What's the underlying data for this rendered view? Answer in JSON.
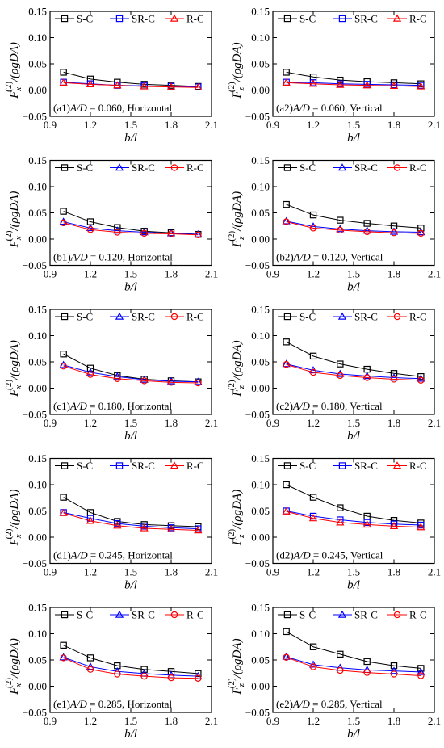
{
  "figure": {
    "legend_entries": [
      "S-C",
      "SR-C",
      "R-C"
    ],
    "colors": {
      "S-C": "#000000",
      "SR-C": "#0000ff",
      "R-C": "#ff0000"
    }
  },
  "chart_data": [
    {
      "type": "line",
      "row": 0,
      "col": 0,
      "panel_label": "(a1)A/D = 0.060, Horizontal",
      "xlabel": "b/l",
      "ylabel": "F_x^(2)/(ρgDA)",
      "xlim": [
        0.9,
        2.1
      ],
      "ylim": [
        -0.05,
        0.15
      ],
      "xticks": [
        "0.9",
        "1.2",
        "1.5",
        "1.8",
        "2.1"
      ],
      "yticks": [
        "−0.05",
        "0.00",
        "0.05",
        "0.10",
        "0.15"
      ],
      "x": [
        1.0,
        1.2,
        1.4,
        1.6,
        1.8,
        2.0
      ],
      "legend": "top",
      "series": [
        {
          "name": "S-C",
          "marker": "square",
          "values": [
            0.034,
            0.021,
            0.015,
            0.011,
            0.009,
            0.007
          ]
        },
        {
          "name": "SR-C",
          "marker": "square",
          "values": [
            0.015,
            0.012,
            0.009,
            0.008,
            0.007,
            0.006
          ]
        },
        {
          "name": "R-C",
          "marker": "triangle",
          "values": [
            0.014,
            0.011,
            0.009,
            0.007,
            0.006,
            0.005
          ]
        }
      ]
    },
    {
      "type": "line",
      "row": 0,
      "col": 1,
      "panel_label": "(a2)A/D = 0.060, Vertical",
      "xlabel": "b/l",
      "ylabel": "F_z^(2)/(ρgDA)",
      "xlim": [
        0.9,
        2.1
      ],
      "ylim": [
        -0.05,
        0.15
      ],
      "xticks": [
        "0.9",
        "1.2",
        "1.5",
        "1.8",
        "2.1"
      ],
      "yticks": [
        "−0.05",
        "0.00",
        "0.05",
        "0.10",
        "0.15"
      ],
      "x": [
        1.0,
        1.2,
        1.4,
        1.6,
        1.8,
        2.0
      ],
      "legend": "top",
      "series": [
        {
          "name": "S-C",
          "marker": "square",
          "values": [
            0.034,
            0.025,
            0.019,
            0.016,
            0.014,
            0.012
          ]
        },
        {
          "name": "SR-C",
          "marker": "square",
          "values": [
            0.015,
            0.014,
            0.012,
            0.011,
            0.01,
            0.009
          ]
        },
        {
          "name": "R-C",
          "marker": "triangle",
          "values": [
            0.014,
            0.012,
            0.01,
            0.009,
            0.008,
            0.007
          ]
        }
      ]
    },
    {
      "type": "line",
      "row": 1,
      "col": 0,
      "panel_label": "(b1)A/D = 0.120, Horizontal",
      "xlabel": "b/l",
      "ylabel": "F_x^(2)/(ρgDA)",
      "xlim": [
        0.9,
        2.1
      ],
      "ylim": [
        -0.05,
        0.15
      ],
      "xticks": [
        "0.9",
        "1.2",
        "1.5",
        "1.8",
        "2.1"
      ],
      "yticks": [
        "−0.05",
        "0.00",
        "0.05",
        "0.10",
        "0.15"
      ],
      "x": [
        1.0,
        1.2,
        1.4,
        1.6,
        1.8,
        2.0
      ],
      "legend": "top",
      "series": [
        {
          "name": "S-C",
          "marker": "square",
          "values": [
            0.053,
            0.033,
            0.022,
            0.015,
            0.012,
            0.009
          ]
        },
        {
          "name": "SR-C",
          "marker": "triangle",
          "values": [
            0.033,
            0.021,
            0.016,
            0.013,
            0.011,
            0.009
          ]
        },
        {
          "name": "R-C",
          "marker": "circle",
          "values": [
            0.031,
            0.018,
            0.013,
            0.011,
            0.01,
            0.008
          ]
        }
      ]
    },
    {
      "type": "line",
      "row": 1,
      "col": 1,
      "panel_label": "(b2)A/D = 0.120, Vertical",
      "xlabel": "b/l",
      "ylabel": "F_z^(2)/(ρgDA)",
      "xlim": [
        0.9,
        2.1
      ],
      "ylim": [
        -0.05,
        0.15
      ],
      "xticks": [
        "0.9",
        "1.2",
        "1.5",
        "1.8",
        "2.1"
      ],
      "yticks": [
        "−0.05",
        "0.00",
        "0.05",
        "0.10",
        "0.15"
      ],
      "x": [
        1.0,
        1.2,
        1.4,
        1.6,
        1.8,
        2.0
      ],
      "legend": "top",
      "series": [
        {
          "name": "S-C",
          "marker": "square",
          "values": [
            0.066,
            0.046,
            0.036,
            0.03,
            0.025,
            0.021
          ]
        },
        {
          "name": "SR-C",
          "marker": "triangle",
          "values": [
            0.034,
            0.024,
            0.019,
            0.016,
            0.014,
            0.013
          ]
        },
        {
          "name": "R-C",
          "marker": "circle",
          "values": [
            0.033,
            0.021,
            0.017,
            0.014,
            0.012,
            0.011
          ]
        }
      ]
    },
    {
      "type": "line",
      "row": 2,
      "col": 0,
      "panel_label": "(c1)A/D = 0.180, Horizontal",
      "xlabel": "b/l",
      "ylabel": "F_x^(2)/(ρgDA)",
      "xlim": [
        0.9,
        2.1
      ],
      "ylim": [
        -0.05,
        0.15
      ],
      "xticks": [
        "0.9",
        "1.2",
        "1.5",
        "1.8",
        "2.1"
      ],
      "yticks": [
        "−0.05",
        "0.00",
        "0.05",
        "0.10",
        "0.15"
      ],
      "x": [
        1.0,
        1.2,
        1.4,
        1.6,
        1.8,
        2.0
      ],
      "legend": "top",
      "series": [
        {
          "name": "S-C",
          "marker": "square",
          "values": [
            0.065,
            0.038,
            0.024,
            0.017,
            0.014,
            0.012
          ]
        },
        {
          "name": "SR-C",
          "marker": "triangle",
          "values": [
            0.044,
            0.03,
            0.022,
            0.016,
            0.013,
            0.012
          ]
        },
        {
          "name": "R-C",
          "marker": "circle",
          "values": [
            0.042,
            0.026,
            0.018,
            0.014,
            0.011,
            0.01
          ]
        }
      ]
    },
    {
      "type": "line",
      "row": 2,
      "col": 1,
      "panel_label": "(c2)A/D = 0.180, Vertical",
      "xlabel": "b/l",
      "ylabel": "F_z^(2)/(ρgDA)",
      "xlim": [
        0.9,
        2.1
      ],
      "ylim": [
        -0.05,
        0.15
      ],
      "xticks": [
        "0.9",
        "1.2",
        "1.5",
        "1.8",
        "2.1"
      ],
      "yticks": [
        "−0.05",
        "0.00",
        "0.05",
        "0.10",
        "0.15"
      ],
      "x": [
        1.0,
        1.2,
        1.4,
        1.6,
        1.8,
        2.0
      ],
      "legend": "top",
      "series": [
        {
          "name": "S-C",
          "marker": "square",
          "values": [
            0.088,
            0.061,
            0.046,
            0.036,
            0.028,
            0.022
          ]
        },
        {
          "name": "SR-C",
          "marker": "triangle",
          "values": [
            0.046,
            0.034,
            0.027,
            0.023,
            0.02,
            0.018
          ]
        },
        {
          "name": "R-C",
          "marker": "circle",
          "values": [
            0.045,
            0.03,
            0.024,
            0.02,
            0.017,
            0.015
          ]
        }
      ]
    },
    {
      "type": "line",
      "row": 3,
      "col": 0,
      "panel_label": "(d1)A/D = 0.245, Horizontal",
      "xlabel": "b/l",
      "ylabel": "F_x^(2)/(ρgDA)",
      "xlim": [
        0.9,
        2.1
      ],
      "ylim": [
        -0.05,
        0.15
      ],
      "xticks": [
        "0.9",
        "1.2",
        "1.5",
        "1.8",
        "2.1"
      ],
      "yticks": [
        "−0.05",
        "0.00",
        "0.05",
        "0.10",
        "0.15"
      ],
      "x": [
        1.0,
        1.2,
        1.4,
        1.6,
        1.8,
        2.0
      ],
      "legend": "top",
      "series": [
        {
          "name": "S-C",
          "marker": "square",
          "values": [
            0.076,
            0.047,
            0.03,
            0.024,
            0.022,
            0.02
          ]
        },
        {
          "name": "SR-C",
          "marker": "square",
          "values": [
            0.047,
            0.036,
            0.026,
            0.021,
            0.018,
            0.016
          ]
        },
        {
          "name": "R-C",
          "marker": "triangle",
          "values": [
            0.046,
            0.031,
            0.022,
            0.017,
            0.015,
            0.013
          ]
        }
      ]
    },
    {
      "type": "line",
      "row": 3,
      "col": 1,
      "panel_label": "(d2)A/D = 0.245, Vertical",
      "xlabel": "b/l",
      "ylabel": "F_z^(2)/(ρgDA)",
      "xlim": [
        0.9,
        2.1
      ],
      "ylim": [
        -0.05,
        0.15
      ],
      "xticks": [
        "0.9",
        "1.2",
        "1.5",
        "1.8",
        "2.1"
      ],
      "yticks": [
        "−0.05",
        "0.00",
        "0.05",
        "0.10",
        "0.15"
      ],
      "x": [
        1.0,
        1.2,
        1.4,
        1.6,
        1.8,
        2.0
      ],
      "legend": "top",
      "series": [
        {
          "name": "S-C",
          "marker": "square",
          "values": [
            0.1,
            0.076,
            0.056,
            0.04,
            0.032,
            0.027
          ]
        },
        {
          "name": "SR-C",
          "marker": "square",
          "values": [
            0.05,
            0.04,
            0.033,
            0.028,
            0.025,
            0.023
          ]
        },
        {
          "name": "R-C",
          "marker": "triangle",
          "values": [
            0.049,
            0.036,
            0.028,
            0.024,
            0.021,
            0.019
          ]
        }
      ]
    },
    {
      "type": "line",
      "row": 4,
      "col": 0,
      "panel_label": "(e1)A/D = 0.285, Horizontal",
      "xlabel": "b/l",
      "ylabel": "F_x^(2)/(ρgDA)",
      "xlim": [
        0.9,
        2.1
      ],
      "ylim": [
        -0.05,
        0.15
      ],
      "xticks": [
        "0.9",
        "1.2",
        "1.5",
        "1.8",
        "2.1"
      ],
      "yticks": [
        "−0.05",
        "0.00",
        "0.05",
        "0.10",
        "0.15"
      ],
      "x": [
        1.0,
        1.2,
        1.4,
        1.6,
        1.8,
        2.0
      ],
      "legend": "top",
      "series": [
        {
          "name": "S-C",
          "marker": "square",
          "values": [
            0.078,
            0.054,
            0.039,
            0.032,
            0.028,
            0.024
          ]
        },
        {
          "name": "SR-C",
          "marker": "triangle",
          "values": [
            0.055,
            0.037,
            0.028,
            0.024,
            0.021,
            0.019
          ]
        },
        {
          "name": "R-C",
          "marker": "circle",
          "values": [
            0.054,
            0.032,
            0.023,
            0.019,
            0.016,
            0.015
          ]
        }
      ]
    },
    {
      "type": "line",
      "row": 4,
      "col": 1,
      "panel_label": "(e2)A/D = 0.285, Vertical",
      "xlabel": "b/l",
      "ylabel": "F_z^(2)/(ρgDA)",
      "xlim": [
        0.9,
        2.1
      ],
      "ylim": [
        -0.05,
        0.15
      ],
      "xticks": [
        "0.9",
        "1.2",
        "1.5",
        "1.8",
        "2.1"
      ],
      "yticks": [
        "−0.05",
        "0.00",
        "0.05",
        "0.10",
        "0.15"
      ],
      "x": [
        1.0,
        1.2,
        1.4,
        1.6,
        1.8,
        2.0
      ],
      "legend": "top",
      "series": [
        {
          "name": "S-C",
          "marker": "square",
          "values": [
            0.104,
            0.075,
            0.061,
            0.047,
            0.039,
            0.034
          ]
        },
        {
          "name": "SR-C",
          "marker": "triangle",
          "values": [
            0.056,
            0.041,
            0.035,
            0.031,
            0.029,
            0.027
          ]
        },
        {
          "name": "R-C",
          "marker": "circle",
          "values": [
            0.055,
            0.037,
            0.03,
            0.026,
            0.023,
            0.02
          ]
        }
      ]
    }
  ]
}
